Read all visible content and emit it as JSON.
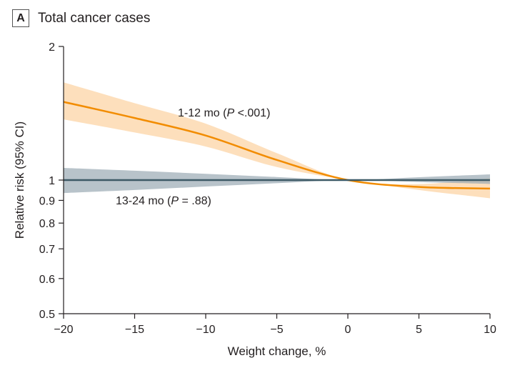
{
  "panel": {
    "letter": "A",
    "title": "Total cancer cases"
  },
  "chart_data": {
    "type": "line",
    "xlabel": "Weight change, %",
    "ylabel": "Relative risk (95% CI)",
    "xlim": [
      -20,
      10
    ],
    "ylim": [
      0.5,
      2
    ],
    "yscale": "log",
    "xticks": [
      -20,
      -15,
      -10,
      -5,
      0,
      5,
      10
    ],
    "xtick_labels": [
      "−20",
      "−15",
      "−10",
      "−5",
      "0",
      "5",
      "10"
    ],
    "yticks": [
      0.5,
      0.6,
      0.7,
      0.8,
      0.9,
      1,
      2
    ],
    "ytick_labels": [
      "0.5",
      "0.6",
      "0.7",
      "0.8",
      "0.9",
      "1",
      "2"
    ],
    "reference_line": 1,
    "grid": false,
    "series": [
      {
        "name": "1-12 mo",
        "label_prefix": "1-12 mo (",
        "label_p": "P",
        "label_suffix": " <.001)",
        "color": "#f28c00",
        "band_color": "#fddcb5",
        "x": [
          -20,
          -15,
          -10,
          -5,
          0,
          5,
          10
        ],
        "y": [
          1.5,
          1.38,
          1.26,
          1.11,
          1.0,
          0.965,
          0.957
        ],
        "lower": [
          1.37,
          1.28,
          1.19,
          1.07,
          1.0,
          0.95,
          0.91
        ],
        "upper": [
          1.66,
          1.49,
          1.34,
          1.15,
          1.0,
          0.98,
          1.01
        ]
      },
      {
        "name": "13-24 mo",
        "label_prefix": "13-24 mo (",
        "label_p": "P",
        "label_suffix": " = .88)",
        "color": "#3d5a66",
        "band_color": "#9aa9b3",
        "x": [
          -20,
          -15,
          -10,
          -5,
          0,
          5,
          10
        ],
        "y": [
          1.0,
          1.0,
          1.0,
          1.0,
          1.0,
          1.0,
          1.0
        ],
        "lower": [
          0.935,
          0.95,
          0.967,
          0.984,
          1.0,
          0.99,
          0.98
        ],
        "upper": [
          1.065,
          1.05,
          1.033,
          1.016,
          1.0,
          1.015,
          1.03
        ]
      }
    ]
  }
}
